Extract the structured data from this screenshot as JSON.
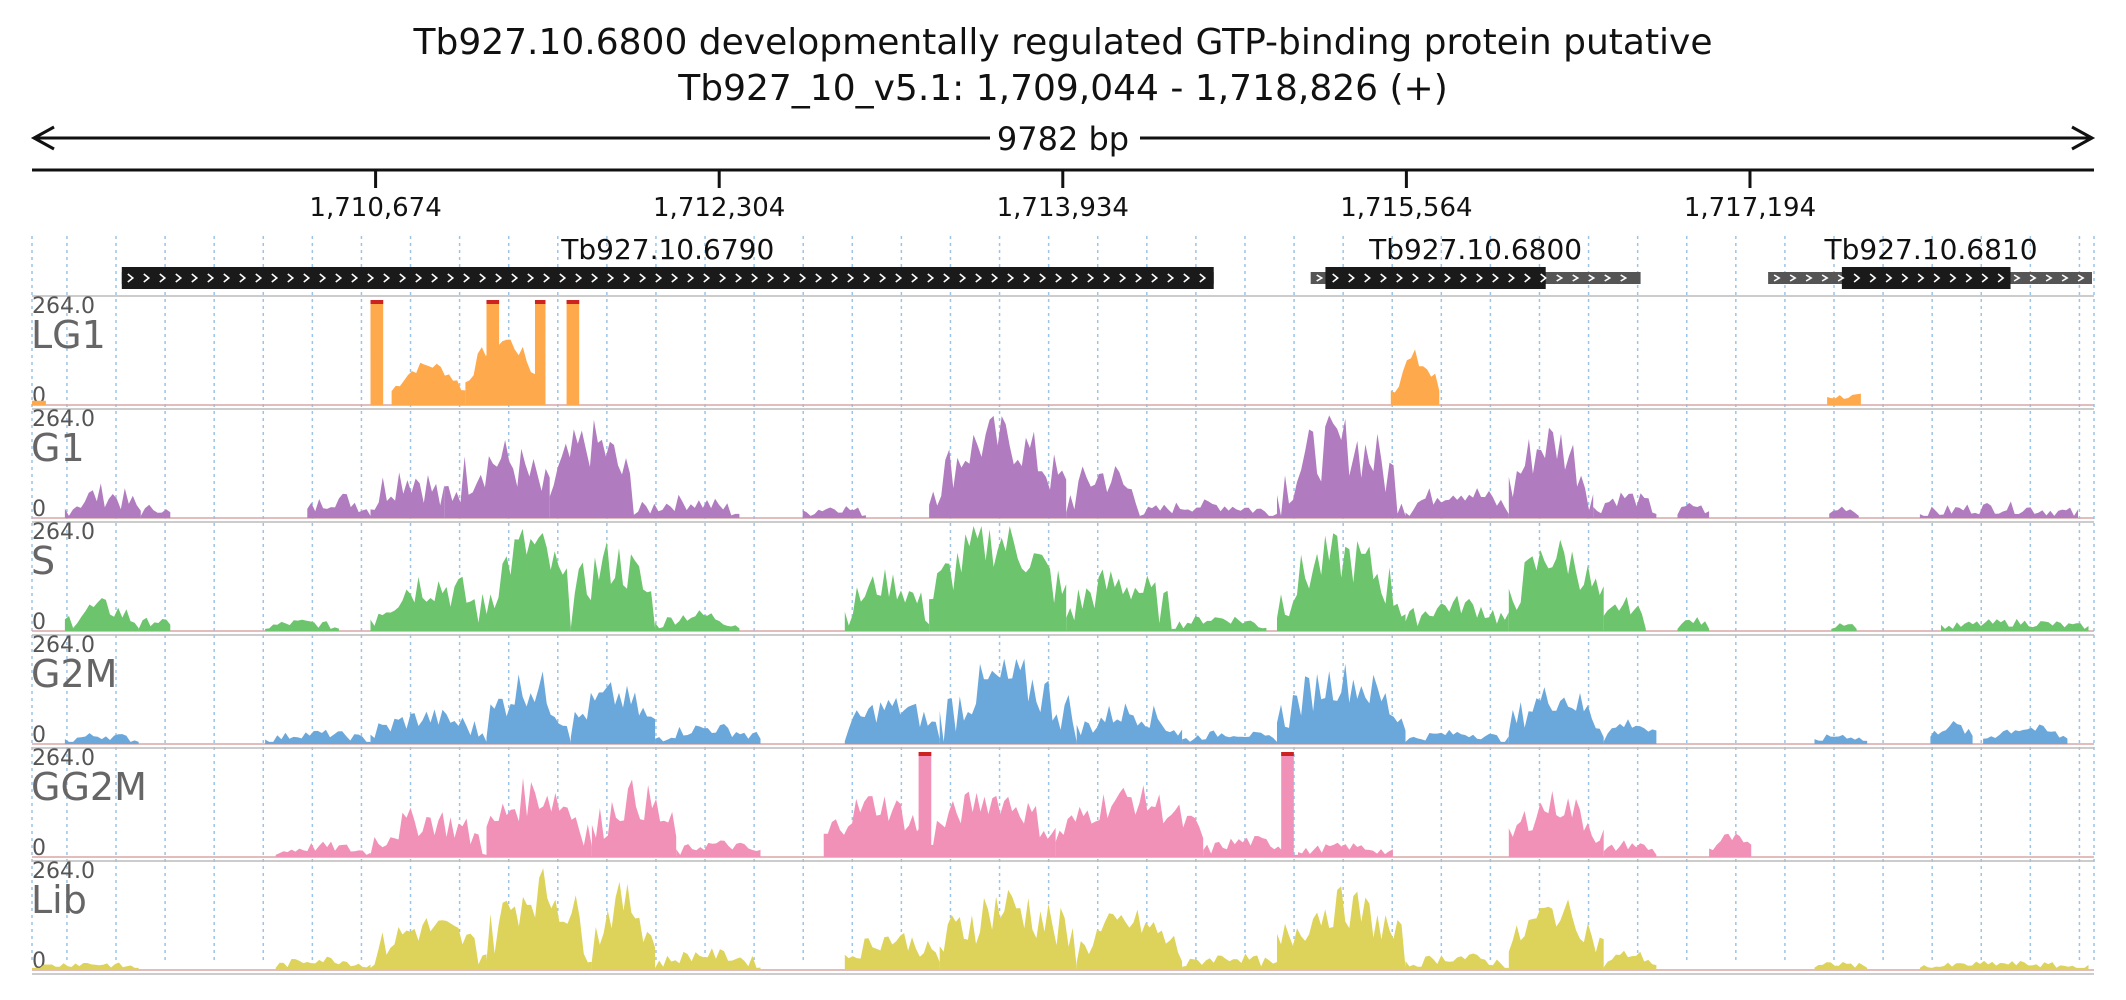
{
  "header": {
    "title": "Tb927.10.6800  developmentally regulated GTP-binding protein  putative",
    "locus": "Tb927_10_v5.1: 1,709,044 - 1,718,826 (+)"
  },
  "ruler": {
    "span_label": "9782 bp",
    "start": 1709044,
    "end": 1718826,
    "ticks": [
      {
        "value": 1710674,
        "label": "1,710,674"
      },
      {
        "value": 1712304,
        "label": "1,712,304"
      },
      {
        "value": 1713934,
        "label": "1,713,934"
      },
      {
        "value": 1715564,
        "label": "1,715,564"
      },
      {
        "value": 1717194,
        "label": "1,717,194"
      }
    ]
  },
  "genes": [
    {
      "name": "Tb927.10.6790",
      "start": 1709470,
      "end": 1714650,
      "cds_start": 1709470,
      "cds_end": 1714650,
      "strand": "+"
    },
    {
      "name": "Tb927.10.6800",
      "start": 1715110,
      "end": 1716675,
      "cds_start": 1715180,
      "cds_end": 1716225,
      "strand": "+"
    },
    {
      "name": "Tb927.10.6810",
      "start": 1717280,
      "end": 1719100,
      "cds_start": 1717630,
      "cds_end": 1718430,
      "strand": "+"
    }
  ],
  "tracks": [
    {
      "name": "LG1",
      "max_label": "264.0",
      "min_label": "0",
      "color": "#ffa94d",
      "peaks": [
        {
          "start": 1710750,
          "end": 1711100,
          "height": 0.38,
          "jag": 0.05,
          "shape": "hump"
        },
        {
          "start": 1711100,
          "end": 1711450,
          "height": 0.62,
          "jag": 0.08,
          "shape": "hump"
        },
        {
          "start": 1710650,
          "end": 1710710,
          "height": 1.0,
          "jag": 0.0,
          "shape": "flat"
        },
        {
          "start": 1711200,
          "end": 1711260,
          "height": 1.0,
          "jag": 0.0,
          "shape": "flat"
        },
        {
          "start": 1711430,
          "end": 1711480,
          "height": 1.0,
          "jag": 0.0,
          "shape": "flat"
        },
        {
          "start": 1711580,
          "end": 1711640,
          "height": 1.0,
          "jag": 0.0,
          "shape": "flat"
        },
        {
          "start": 1715490,
          "end": 1715720,
          "height": 0.42,
          "jag": 0.12,
          "shape": "hump"
        },
        {
          "start": 1717560,
          "end": 1717720,
          "height": 0.08,
          "jag": 0.03,
          "shape": "flat"
        },
        {
          "start": 1709044,
          "end": 1709110,
          "height": 0.04,
          "jag": 0.0,
          "shape": "flat"
        }
      ]
    },
    {
      "name": "G1",
      "max_label": "264.0",
      "min_label": "0",
      "color": "#b07cbf",
      "peaks": [
        {
          "start": 1709200,
          "end": 1709560,
          "height": 0.22,
          "jag": 0.12,
          "shape": "hump"
        },
        {
          "start": 1709560,
          "end": 1709700,
          "height": 0.1,
          "jag": 0.05,
          "shape": "hump"
        },
        {
          "start": 1710350,
          "end": 1710650,
          "height": 0.18,
          "jag": 0.08,
          "shape": "hump"
        },
        {
          "start": 1710650,
          "end": 1711000,
          "height": 0.4,
          "jag": 0.2,
          "shape": "hump"
        },
        {
          "start": 1711000,
          "end": 1711500,
          "height": 0.55,
          "jag": 0.25,
          "shape": "hump"
        },
        {
          "start": 1711500,
          "end": 1711900,
          "height": 0.7,
          "jag": 0.25,
          "shape": "hump"
        },
        {
          "start": 1711900,
          "end": 1712400,
          "height": 0.15,
          "jag": 0.08,
          "shape": "hump"
        },
        {
          "start": 1712700,
          "end": 1713000,
          "height": 0.1,
          "jag": 0.05,
          "shape": "hump"
        },
        {
          "start": 1713300,
          "end": 1713950,
          "height": 0.75,
          "jag": 0.25,
          "shape": "hump"
        },
        {
          "start": 1713950,
          "end": 1714300,
          "height": 0.4,
          "jag": 0.2,
          "shape": "hump"
        },
        {
          "start": 1714300,
          "end": 1714950,
          "height": 0.12,
          "jag": 0.06,
          "shape": "hump"
        },
        {
          "start": 1714950,
          "end": 1715560,
          "height": 0.7,
          "jag": 0.3,
          "shape": "hump"
        },
        {
          "start": 1715560,
          "end": 1716050,
          "height": 0.25,
          "jag": 0.1,
          "shape": "hump"
        },
        {
          "start": 1716050,
          "end": 1716450,
          "height": 0.72,
          "jag": 0.25,
          "shape": "hump"
        },
        {
          "start": 1716450,
          "end": 1716750,
          "height": 0.2,
          "jag": 0.08,
          "shape": "hump"
        },
        {
          "start": 1716850,
          "end": 1717000,
          "height": 0.12,
          "jag": 0.04,
          "shape": "hump"
        },
        {
          "start": 1717570,
          "end": 1717710,
          "height": 0.1,
          "jag": 0.04,
          "shape": "hump"
        },
        {
          "start": 1718000,
          "end": 1718750,
          "height": 0.1,
          "jag": 0.06,
          "shape": "hump"
        }
      ]
    },
    {
      "name": "S",
      "max_label": "264.0",
      "min_label": "0",
      "color": "#6cc46c",
      "peaks": [
        {
          "start": 1709200,
          "end": 1709550,
          "height": 0.22,
          "jag": 0.1,
          "shape": "hump"
        },
        {
          "start": 1709550,
          "end": 1709700,
          "height": 0.1,
          "jag": 0.05,
          "shape": "hump"
        },
        {
          "start": 1710150,
          "end": 1710500,
          "height": 0.08,
          "jag": 0.04,
          "shape": "hump"
        },
        {
          "start": 1710650,
          "end": 1711200,
          "height": 0.45,
          "jag": 0.2,
          "shape": "hump"
        },
        {
          "start": 1711200,
          "end": 1711600,
          "height": 0.8,
          "jag": 0.25,
          "shape": "hump"
        },
        {
          "start": 1711600,
          "end": 1712000,
          "height": 0.65,
          "jag": 0.25,
          "shape": "hump"
        },
        {
          "start": 1712000,
          "end": 1712400,
          "height": 0.15,
          "jag": 0.06,
          "shape": "hump"
        },
        {
          "start": 1712900,
          "end": 1713300,
          "height": 0.45,
          "jag": 0.15,
          "shape": "hump"
        },
        {
          "start": 1713300,
          "end": 1713950,
          "height": 0.85,
          "jag": 0.25,
          "shape": "hump"
        },
        {
          "start": 1713950,
          "end": 1714450,
          "height": 0.45,
          "jag": 0.2,
          "shape": "hump"
        },
        {
          "start": 1714450,
          "end": 1714900,
          "height": 0.12,
          "jag": 0.05,
          "shape": "hump"
        },
        {
          "start": 1714950,
          "end": 1715560,
          "height": 0.7,
          "jag": 0.25,
          "shape": "hump"
        },
        {
          "start": 1715560,
          "end": 1716050,
          "height": 0.25,
          "jag": 0.1,
          "shape": "hump"
        },
        {
          "start": 1716050,
          "end": 1716500,
          "height": 0.72,
          "jag": 0.2,
          "shape": "hump"
        },
        {
          "start": 1716500,
          "end": 1716700,
          "height": 0.25,
          "jag": 0.08,
          "shape": "hump"
        },
        {
          "start": 1716850,
          "end": 1717000,
          "height": 0.1,
          "jag": 0.04,
          "shape": "hump"
        },
        {
          "start": 1717580,
          "end": 1717700,
          "height": 0.08,
          "jag": 0.03,
          "shape": "hump"
        },
        {
          "start": 1718100,
          "end": 1718800,
          "height": 0.08,
          "jag": 0.04,
          "shape": "hump"
        }
      ]
    },
    {
      "name": "G2M",
      "max_label": "264.0",
      "min_label": "0",
      "color": "#6aa8dc",
      "peaks": [
        {
          "start": 1709200,
          "end": 1709550,
          "height": 0.08,
          "jag": 0.04,
          "shape": "hump"
        },
        {
          "start": 1710150,
          "end": 1710650,
          "height": 0.1,
          "jag": 0.04,
          "shape": "hump"
        },
        {
          "start": 1710650,
          "end": 1711200,
          "height": 0.25,
          "jag": 0.1,
          "shape": "hump"
        },
        {
          "start": 1711200,
          "end": 1711600,
          "height": 0.55,
          "jag": 0.2,
          "shape": "hump"
        },
        {
          "start": 1711600,
          "end": 1712000,
          "height": 0.45,
          "jag": 0.15,
          "shape": "hump"
        },
        {
          "start": 1712000,
          "end": 1712500,
          "height": 0.15,
          "jag": 0.06,
          "shape": "hump"
        },
        {
          "start": 1712900,
          "end": 1713350,
          "height": 0.35,
          "jag": 0.12,
          "shape": "hump"
        },
        {
          "start": 1713350,
          "end": 1714000,
          "height": 0.6,
          "jag": 0.25,
          "shape": "hump"
        },
        {
          "start": 1714000,
          "end": 1714500,
          "height": 0.3,
          "jag": 0.12,
          "shape": "hump"
        },
        {
          "start": 1714500,
          "end": 1714950,
          "height": 0.1,
          "jag": 0.04,
          "shape": "hump"
        },
        {
          "start": 1714950,
          "end": 1715560,
          "height": 0.6,
          "jag": 0.2,
          "shape": "hump"
        },
        {
          "start": 1715560,
          "end": 1716050,
          "height": 0.1,
          "jag": 0.04,
          "shape": "hump"
        },
        {
          "start": 1716050,
          "end": 1716500,
          "height": 0.45,
          "jag": 0.15,
          "shape": "hump"
        },
        {
          "start": 1716500,
          "end": 1716750,
          "height": 0.2,
          "jag": 0.06,
          "shape": "hump"
        },
        {
          "start": 1717500,
          "end": 1717750,
          "height": 0.08,
          "jag": 0.03,
          "shape": "hump"
        },
        {
          "start": 1718050,
          "end": 1718250,
          "height": 0.18,
          "jag": 0.05,
          "shape": "hump"
        },
        {
          "start": 1718300,
          "end": 1718700,
          "height": 0.15,
          "jag": 0.05,
          "shape": "hump"
        }
      ]
    },
    {
      "name": "GG2M",
      "max_label": "264.0",
      "min_label": "0",
      "color": "#f291b8",
      "peaks": [
        {
          "start": 1710200,
          "end": 1710650,
          "height": 0.1,
          "jag": 0.05,
          "shape": "hump"
        },
        {
          "start": 1710650,
          "end": 1711200,
          "height": 0.35,
          "jag": 0.15,
          "shape": "hump"
        },
        {
          "start": 1711200,
          "end": 1711700,
          "height": 0.6,
          "jag": 0.2,
          "shape": "hump"
        },
        {
          "start": 1711700,
          "end": 1712100,
          "height": 0.55,
          "jag": 0.2,
          "shape": "hump"
        },
        {
          "start": 1712100,
          "end": 1712500,
          "height": 0.12,
          "jag": 0.05,
          "shape": "hump"
        },
        {
          "start": 1712800,
          "end": 1713300,
          "height": 0.5,
          "jag": 0.15,
          "shape": "hump"
        },
        {
          "start": 1713300,
          "end": 1713900,
          "height": 0.55,
          "jag": 0.15,
          "shape": "hump"
        },
        {
          "start": 1713900,
          "end": 1714600,
          "height": 0.55,
          "jag": 0.15,
          "shape": "hump"
        },
        {
          "start": 1714600,
          "end": 1715050,
          "height": 0.15,
          "jag": 0.06,
          "shape": "hump"
        },
        {
          "start": 1715050,
          "end": 1715500,
          "height": 0.1,
          "jag": 0.04,
          "shape": "hump"
        },
        {
          "start": 1716050,
          "end": 1716500,
          "height": 0.5,
          "jag": 0.15,
          "shape": "hump"
        },
        {
          "start": 1716500,
          "end": 1716750,
          "height": 0.12,
          "jag": 0.05,
          "shape": "hump"
        },
        {
          "start": 1717000,
          "end": 1717200,
          "height": 0.18,
          "jag": 0.06,
          "shape": "hump"
        },
        {
          "start": 1713250,
          "end": 1713310,
          "height": 1.0,
          "jag": 0.0,
          "shape": "flat"
        },
        {
          "start": 1714970,
          "end": 1715030,
          "height": 1.0,
          "jag": 0.0,
          "shape": "flat"
        }
      ]
    },
    {
      "name": "Lib",
      "max_label": "264.0",
      "min_label": "0",
      "color": "#ddd35a",
      "peaks": [
        {
          "start": 1709044,
          "end": 1709550,
          "height": 0.06,
          "jag": 0.03,
          "shape": "hump"
        },
        {
          "start": 1710200,
          "end": 1710650,
          "height": 0.1,
          "jag": 0.04,
          "shape": "hump"
        },
        {
          "start": 1710650,
          "end": 1711200,
          "height": 0.4,
          "jag": 0.15,
          "shape": "hump"
        },
        {
          "start": 1711200,
          "end": 1711700,
          "height": 0.75,
          "jag": 0.25,
          "shape": "hump"
        },
        {
          "start": 1711700,
          "end": 1712000,
          "height": 0.65,
          "jag": 0.2,
          "shape": "hump"
        },
        {
          "start": 1712000,
          "end": 1712500,
          "height": 0.15,
          "jag": 0.06,
          "shape": "hump"
        },
        {
          "start": 1712900,
          "end": 1713350,
          "height": 0.3,
          "jag": 0.1,
          "shape": "hump"
        },
        {
          "start": 1713350,
          "end": 1714000,
          "height": 0.6,
          "jag": 0.25,
          "shape": "hump"
        },
        {
          "start": 1714000,
          "end": 1714500,
          "height": 0.45,
          "jag": 0.15,
          "shape": "hump"
        },
        {
          "start": 1714500,
          "end": 1714950,
          "height": 0.12,
          "jag": 0.05,
          "shape": "hump"
        },
        {
          "start": 1714950,
          "end": 1715560,
          "height": 0.6,
          "jag": 0.2,
          "shape": "hump"
        },
        {
          "start": 1715560,
          "end": 1716050,
          "height": 0.12,
          "jag": 0.05,
          "shape": "hump"
        },
        {
          "start": 1716050,
          "end": 1716500,
          "height": 0.55,
          "jag": 0.15,
          "shape": "hump"
        },
        {
          "start": 1716500,
          "end": 1716750,
          "height": 0.15,
          "jag": 0.05,
          "shape": "hump"
        },
        {
          "start": 1717500,
          "end": 1717750,
          "height": 0.06,
          "jag": 0.03,
          "shape": "hump"
        },
        {
          "start": 1718000,
          "end": 1718800,
          "height": 0.06,
          "jag": 0.03,
          "shape": "hump"
        }
      ]
    }
  ]
}
